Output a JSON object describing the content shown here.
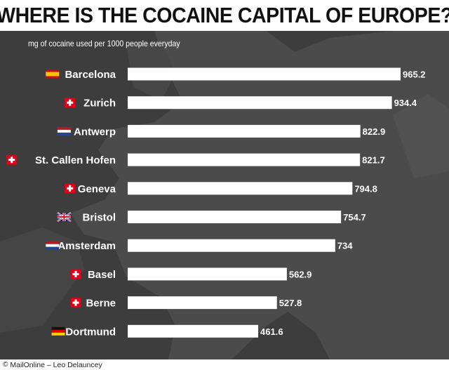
{
  "title": "WHERE IS THE COCAINE CAPITAL OF EUROPE?",
  "subtitle": "mg of cocaine used per 1000 people everyday",
  "credit": "MailOnline – Leo Delauncey",
  "colors": {
    "title_bg": "#ffffff",
    "panel_bg": "#3d3d3d",
    "land": "#4a4a4a",
    "bar": "#ffffff",
    "label": "#ffffff"
  },
  "chart_data": {
    "type": "bar",
    "orientation": "horizontal",
    "title": "WHERE IS THE COCAINE CAPITAL OF EUROPE?",
    "subtitle": "mg of cocaine used per 1000 people everyday",
    "categories": [
      "Barcelona",
      "Zurich",
      "Antwerp",
      "St. Callen Hofen",
      "Geneva",
      "Bristol",
      "Amsterdam",
      "Basel",
      "Berne",
      "Dortmund"
    ],
    "flags": [
      "spain-flag-icon",
      "swiss-flag-icon",
      "netherlands-flag-icon",
      "swiss-flag-icon",
      "swiss-flag-icon",
      "uk-flag-icon",
      "netherlands-flag-icon",
      "swiss-flag-icon",
      "swiss-flag-icon",
      "germany-flag-icon"
    ],
    "values": [
      965.2,
      934.4,
      822.9,
      821.7,
      794.8,
      754.7,
      734,
      562.9,
      527.8,
      461.6
    ],
    "value_labels": [
      "965.2",
      "934.4",
      "822.9",
      "821.7",
      "794.8",
      "754.7",
      "734",
      "562.9",
      "527.8",
      "461.6"
    ],
    "xlim": [
      0,
      965.2
    ],
    "grid": false,
    "legend": "none"
  }
}
